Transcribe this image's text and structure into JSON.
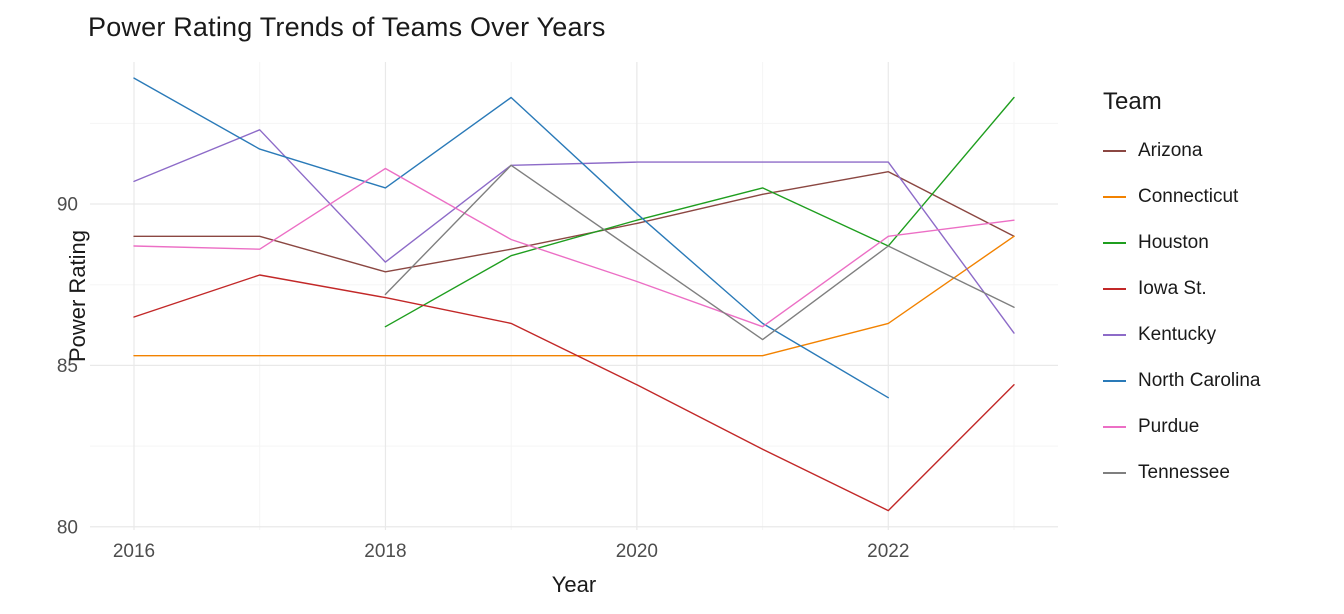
{
  "page": {
    "background": "#FFFFFF"
  },
  "chart_data": {
    "type": "line",
    "title": "Power Rating Trends of Teams Over Years",
    "xlabel": "Year",
    "ylabel": "Power Rating",
    "legend_title": "Team",
    "legend_position": "right",
    "grid": true,
    "xlim": [
      2015.65,
      2023.35
    ],
    "ylim": [
      79.9,
      94.4
    ],
    "x_ticks": [
      2016,
      2018,
      2020,
      2022
    ],
    "y_ticks": [
      80,
      85,
      90
    ],
    "x_minor": [
      2017,
      2019,
      2021,
      2023
    ],
    "y_minor": [
      82.5,
      87.5,
      92.5
    ],
    "tick_color": "#4D4D4D",
    "grid_major_color": "#E9E9E9",
    "grid_minor_color": "#F5F5F5",
    "series": [
      {
        "name": "Arizona",
        "color": "#8B4742",
        "x": [
          2016,
          2017,
          2018,
          2019,
          2020,
          2021,
          2022,
          2023
        ],
        "values": [
          89.0,
          89.0,
          87.9,
          88.6,
          89.4,
          90.3,
          91.0,
          89.0
        ]
      },
      {
        "name": "Connecticut",
        "color": "#F28200",
        "x": [
          2016,
          2017,
          2018,
          2019,
          2020,
          2021,
          2022,
          2023
        ],
        "values": [
          85.3,
          85.3,
          85.3,
          85.3,
          85.3,
          85.3,
          86.3,
          89.0
        ]
      },
      {
        "name": "Houston",
        "color": "#1F9E1F",
        "x": [
          2018,
          2019,
          2020,
          2021,
          2022,
          2023
        ],
        "values": [
          86.2,
          88.4,
          89.5,
          90.5,
          88.7,
          93.3
        ]
      },
      {
        "name": "Iowa St.",
        "color": "#C22828",
        "x": [
          2016,
          2017,
          2018,
          2019,
          2020,
          2021,
          2022,
          2023
        ],
        "values": [
          86.5,
          87.8,
          87.1,
          86.3,
          84.4,
          82.4,
          80.5,
          84.4
        ]
      },
      {
        "name": "Kentucky",
        "color": "#8D6BC8",
        "x": [
          2016,
          2017,
          2018,
          2019,
          2020,
          2021,
          2022,
          2023
        ],
        "values": [
          90.7,
          92.3,
          88.2,
          91.2,
          91.3,
          91.3,
          91.3,
          86.0
        ]
      },
      {
        "name": "North Carolina",
        "color": "#2A7AB8",
        "x": [
          2016,
          2017,
          2018,
          2019,
          2020,
          2021,
          2022
        ],
        "values": [
          93.9,
          91.7,
          90.5,
          93.3,
          89.7,
          86.3,
          84.0
        ]
      },
      {
        "name": "Purdue",
        "color": "#EC6FC5",
        "x": [
          2016,
          2017,
          2018,
          2019,
          2020,
          2021,
          2022,
          2023
        ],
        "values": [
          88.7,
          88.6,
          91.1,
          88.9,
          87.6,
          86.2,
          89.0,
          89.5
        ]
      },
      {
        "name": "Tennessee",
        "color": "#7F7F7F",
        "x": [
          2018,
          2019,
          2020,
          2021,
          2022,
          2023
        ],
        "values": [
          87.2,
          91.2,
          88.5,
          85.8,
          88.7,
          86.8
        ]
      }
    ]
  }
}
